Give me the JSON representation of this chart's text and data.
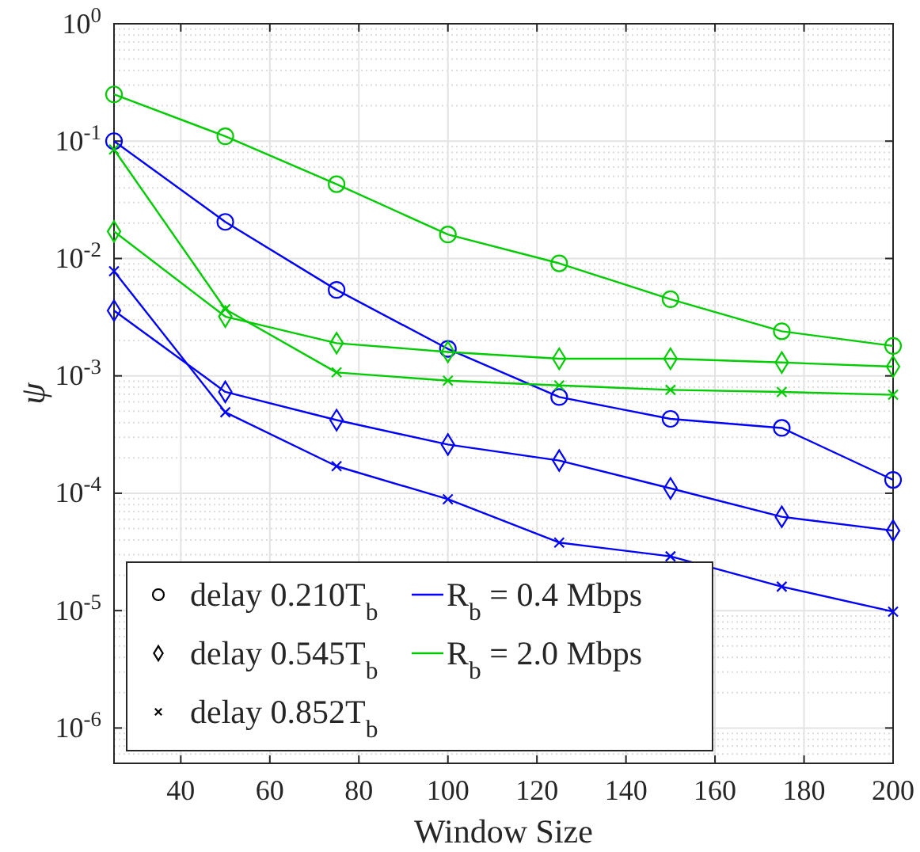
{
  "chart_data": {
    "type": "line",
    "xlabel": "Window Size",
    "ylabel": "ψ",
    "log": "y",
    "grid": true,
    "legend": "bottom left",
    "x": [
      25,
      50,
      75,
      100,
      125,
      150,
      175,
      200
    ],
    "xlim": [
      25,
      200
    ],
    "xticks": [
      40,
      60,
      80,
      100,
      120,
      140,
      160,
      180,
      200
    ],
    "ylim": [
      5e-07,
      1
    ],
    "yticks": [
      {
        "value": 1e-06,
        "label": "10$^{-6}$"
      },
      {
        "value": 1e-05,
        "label": "10$^{-5}$"
      },
      {
        "value": 0.0001,
        "label": "10$^{-4}$"
      },
      {
        "value": 0.001,
        "label": "10$^{-3}$"
      },
      {
        "value": 0.01,
        "label": "10$^{-2}$"
      },
      {
        "value": 0.1,
        "label": "10$^{-1}$"
      },
      {
        "value": 1,
        "label": "10$^{0}$"
      }
    ],
    "series": [
      {
        "color": "#00cc00",
        "marker": "circle",
        "values": [
          0.25,
          0.11,
          0.043,
          0.016,
          0.0091,
          0.0045,
          0.0024,
          0.0018
        ]
      },
      {
        "color": "#0000ff",
        "marker": "circle",
        "values": [
          0.1,
          0.0205,
          0.0054,
          0.0017,
          0.00066,
          0.00043,
          0.00036,
          0.00013
        ]
      },
      {
        "color": "#00cc00",
        "marker": "diamond",
        "values": [
          0.017,
          0.0032,
          0.0019,
          0.0016,
          0.0014,
          0.0014,
          0.0013,
          0.0012
        ]
      },
      {
        "color": "#00cc00",
        "marker": "cross",
        "values": [
          0.085,
          0.0037,
          0.00107,
          0.00091,
          0.00083,
          0.00076,
          0.00073,
          0.00069
        ]
      },
      {
        "color": "#0000ff",
        "marker": "diamond",
        "values": [
          0.0036,
          0.00073,
          0.00042,
          0.00026,
          0.00019,
          0.00011,
          6.3e-05,
          4.8e-05
        ]
      },
      {
        "color": "#0000ff",
        "marker": "cross",
        "values": [
          0.0078,
          0.00049,
          0.00017,
          8.9e-05,
          3.8e-05,
          2.9e-05,
          1.6e-05,
          9.8e-06
        ]
      },
      {
        "name": "delay 0.210T$_{b}$",
        "color": "#000000",
        "marker": "circle",
        "line_style": "none",
        "values": [
          null,
          null,
          null,
          null,
          null,
          null,
          null,
          null
        ]
      },
      {
        "name": "delay 0.545T$_{b}$",
        "color": "#000000",
        "marker": "diamond",
        "line_style": "none",
        "values": [
          null,
          null,
          null,
          null,
          null,
          null,
          null,
          null
        ]
      },
      {
        "name": "delay 0.852T$_{b}$",
        "color": "#000000",
        "marker": "cross",
        "line_style": "none",
        "values": [
          null,
          null,
          null,
          null,
          null,
          null,
          null,
          null
        ]
      },
      {
        "name": "R$_{b}$ = 0.4 Mbps",
        "color": "#0000ff",
        "marker": "none",
        "values": [
          null,
          null,
          null,
          null,
          null,
          null,
          null,
          null
        ]
      },
      {
        "name": "R$_{b}$ = 2.0 Mbps",
        "color": "#00cc00",
        "marker": "none",
        "values": [
          null,
          null,
          null,
          null,
          null,
          null,
          null,
          null
        ]
      }
    ]
  }
}
